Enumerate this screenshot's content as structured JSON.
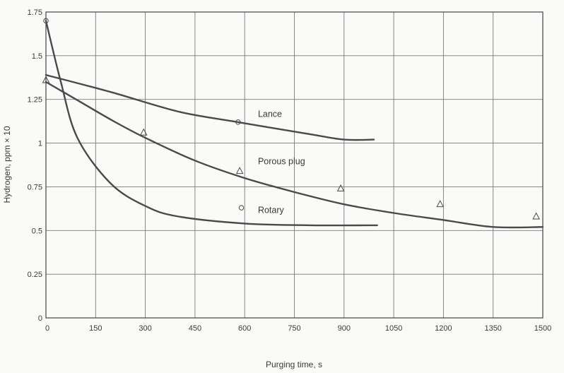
{
  "chart_data": {
    "type": "line",
    "xlabel": "Purging time, s",
    "ylabel": "Hydrogen, ppm × 10",
    "xlim": [
      0,
      1500
    ],
    "ylim": [
      0,
      1.75
    ],
    "xticks": [
      0,
      150,
      300,
      450,
      600,
      750,
      900,
      1050,
      1200,
      1350,
      1500
    ],
    "xtick_labels": [
      "0",
      "150",
      "300",
      "450",
      "600",
      "750",
      "900",
      "1050",
      "1200",
      "1350",
      "1500"
    ],
    "yticks": [
      0,
      0.25,
      0.5,
      0.75,
      1,
      1.25,
      1.5,
      1.75
    ],
    "ytick_labels": [
      "0",
      "0.25",
      "0.5",
      "0.75",
      "1",
      "1.25",
      "1.5",
      "1.75"
    ],
    "grid": true,
    "series": [
      {
        "name": "Lance",
        "x": [
          0,
          200,
          400,
          580,
          800,
          900,
          990
        ],
        "y": [
          1.39,
          1.29,
          1.18,
          1.12,
          1.05,
          1.02,
          1.02
        ],
        "markers": [
          {
            "x": 580,
            "y": 1.12,
            "shape": "filled-circle"
          }
        ]
      },
      {
        "name": "Porous plug",
        "x": [
          0,
          100,
          200,
          300,
          450,
          600,
          750,
          900,
          1050,
          1200,
          1350,
          1500
        ],
        "y": [
          1.35,
          1.24,
          1.13,
          1.03,
          0.9,
          0.8,
          0.72,
          0.65,
          0.6,
          0.56,
          0.52,
          0.52
        ],
        "markers": [
          {
            "x": 0,
            "y": 1.36,
            "shape": "triangle"
          },
          {
            "x": 295,
            "y": 1.06,
            "shape": "triangle"
          },
          {
            "x": 585,
            "y": 0.84,
            "shape": "triangle"
          },
          {
            "x": 890,
            "y": 0.74,
            "shape": "triangle"
          },
          {
            "x": 1190,
            "y": 0.65,
            "shape": "triangle"
          },
          {
            "x": 1480,
            "y": 0.58,
            "shape": "triangle"
          }
        ]
      },
      {
        "name": "Rotary",
        "x": [
          0,
          45,
          95,
          195,
          300,
          400,
          600,
          800,
          1000
        ],
        "y": [
          1.7,
          1.35,
          1.03,
          0.77,
          0.64,
          0.58,
          0.54,
          0.53,
          0.53
        ],
        "markers": [
          {
            "x": 0,
            "y": 1.7,
            "shape": "circle"
          },
          {
            "x": 590,
            "y": 0.63,
            "shape": "circle"
          }
        ]
      }
    ],
    "annotations": [
      {
        "text": "Lance",
        "x": 640,
        "y": 1.15
      },
      {
        "text": "Porous plug",
        "x": 640,
        "y": 0.88
      },
      {
        "text": "Rotary",
        "x": 640,
        "y": 0.6
      }
    ]
  }
}
